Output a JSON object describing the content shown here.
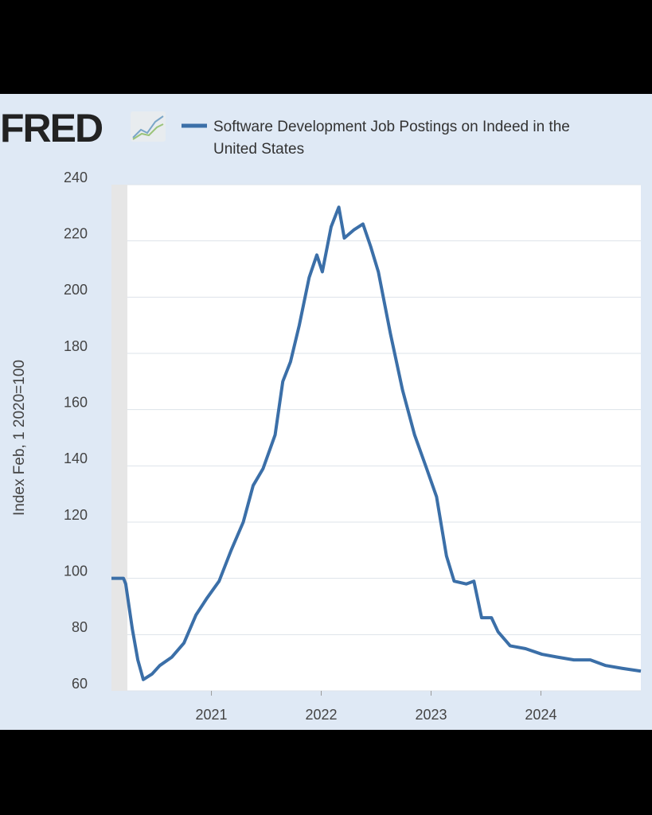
{
  "chart_data": {
    "type": "line",
    "logo": "FRED",
    "y_label": "Index Feb, 1 2020=100",
    "xlim": [
      2020.09,
      2024.91
    ],
    "xticks": [
      2021,
      2022,
      2023,
      2024
    ],
    "ylim": [
      60,
      240
    ],
    "yticks": [
      60,
      80,
      100,
      120,
      140,
      160,
      180,
      200,
      220,
      240
    ],
    "grid": true,
    "series": [
      {
        "name": "Software Development Job Postings on Indeed in the United States",
        "color": "#3b6fa8",
        "x": [
          2020.09,
          2020.2,
          2020.22,
          2020.28,
          2020.33,
          2020.38,
          2020.46,
          2020.53,
          2020.64,
          2020.75,
          2020.86,
          2020.96,
          2021.07,
          2021.18,
          2021.29,
          2021.38,
          2021.47,
          2021.58,
          2021.65,
          2021.72,
          2021.8,
          2021.89,
          2021.96,
          2022.01,
          2022.09,
          2022.16,
          2022.21,
          2022.3,
          2022.38,
          2022.45,
          2022.52,
          2022.63,
          2022.74,
          2022.85,
          2022.96,
          2023.05,
          2023.14,
          2023.21,
          2023.32,
          2023.39,
          2023.46,
          2023.55,
          2023.61,
          2023.72,
          2023.86,
          2024.01,
          2024.15,
          2024.3,
          2024.45,
          2024.59,
          2024.74,
          2024.91
        ],
        "values": [
          100,
          100,
          98,
          82,
          71,
          64,
          66,
          69,
          72,
          77,
          87,
          93,
          99,
          110,
          120,
          133,
          139,
          151,
          170,
          177,
          190,
          207,
          215,
          209,
          225,
          232,
          221,
          224,
          226,
          218,
          209,
          187,
          167,
          151,
          139,
          129,
          108,
          99,
          98,
          99,
          86,
          86,
          81,
          76,
          75,
          73,
          72,
          71,
          71,
          69,
          68,
          67
        ]
      }
    ]
  }
}
